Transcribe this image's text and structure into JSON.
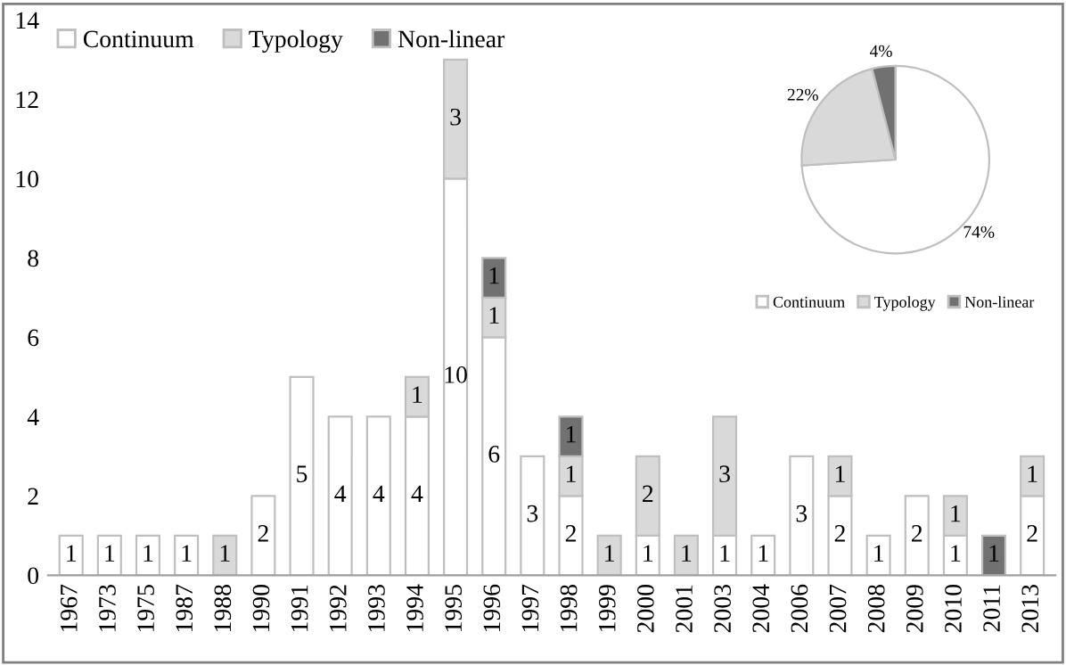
{
  "chart_data": [
    {
      "type": "bar",
      "stacked": true,
      "categories": [
        "1967",
        "1973",
        "1975",
        "1987",
        "1988",
        "1990",
        "1991",
        "1992",
        "1993",
        "1994",
        "1995",
        "1996",
        "1997",
        "1998",
        "1999",
        "2000",
        "2001",
        "2003",
        "2004",
        "2006",
        "2007",
        "2008",
        "2009",
        "2010",
        "2011",
        "2013"
      ],
      "series": [
        {
          "name": "Continuum",
          "color": "#ffffff",
          "values": [
            1,
            1,
            1,
            1,
            null,
            2,
            5,
            4,
            4,
            4,
            10,
            6,
            3,
            2,
            null,
            1,
            null,
            1,
            1,
            3,
            2,
            1,
            2,
            1,
            null,
            2
          ]
        },
        {
          "name": "Typology",
          "color": "#d9d9d9",
          "values": [
            null,
            null,
            null,
            null,
            1,
            null,
            null,
            null,
            null,
            1,
            3,
            1,
            null,
            1,
            1,
            2,
            1,
            3,
            null,
            null,
            1,
            null,
            null,
            1,
            null,
            1
          ]
        },
        {
          "name": "Non-linear",
          "color": "#717171",
          "values": [
            null,
            null,
            null,
            null,
            null,
            null,
            null,
            null,
            null,
            null,
            null,
            1,
            null,
            1,
            null,
            null,
            null,
            null,
            null,
            null,
            null,
            null,
            null,
            null,
            1,
            null
          ]
        }
      ],
      "ylim": [
        0,
        14
      ],
      "yticks": [
        0,
        2,
        4,
        6,
        8,
        10,
        12,
        14
      ],
      "grid": false,
      "legend": "top left",
      "data_labels": true
    },
    {
      "type": "pie",
      "categories": [
        "Continuum",
        "Typology",
        "Non-linear"
      ],
      "values": [
        74,
        22,
        4
      ],
      "colors": [
        "#ffffff",
        "#d9d9d9",
        "#717171"
      ],
      "legend": "bottom",
      "value_labels": [
        "74%",
        "22%",
        "4%"
      ]
    }
  ]
}
